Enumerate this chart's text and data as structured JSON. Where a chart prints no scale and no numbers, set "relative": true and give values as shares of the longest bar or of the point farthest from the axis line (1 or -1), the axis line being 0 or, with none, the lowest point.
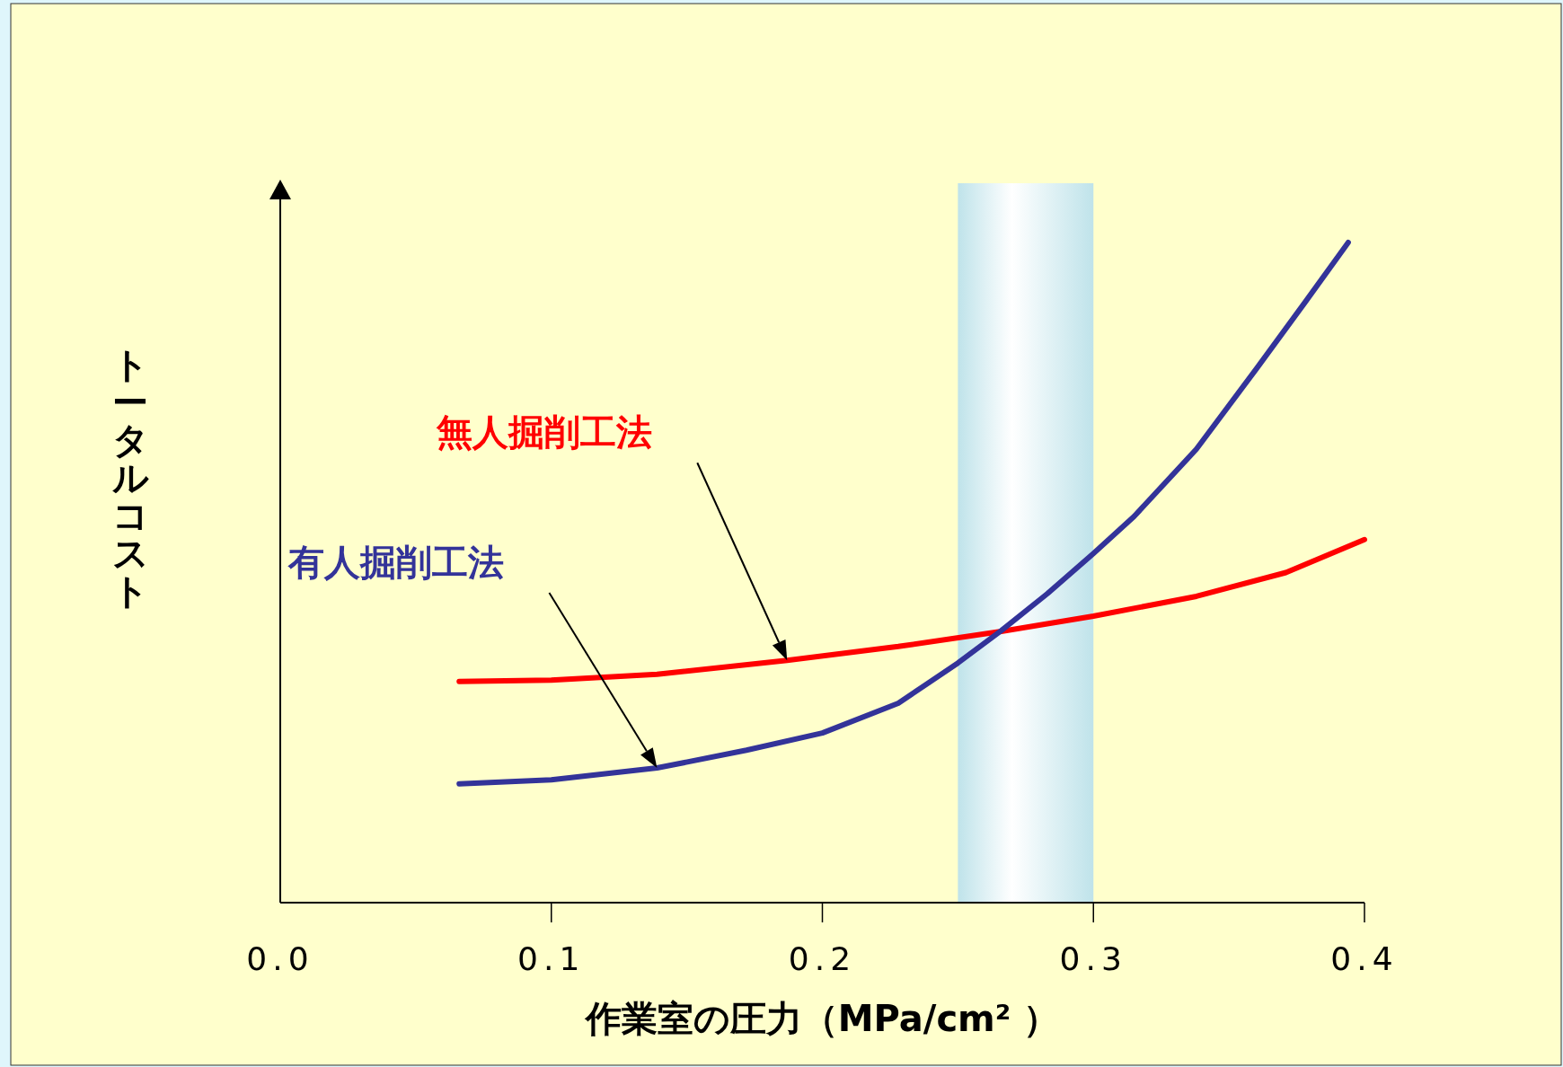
{
  "chart_data": {
    "type": "line",
    "relative": true,
    "xlabel": "作業室の圧力（MPa/cm² ）",
    "ylabel": "トータルコスト",
    "xlim": [
      0,
      0.4
    ],
    "xticks": [
      {
        "value": 0,
        "label": "0.0"
      },
      0.1,
      0.2,
      0.3,
      0.4
    ],
    "legend": false,
    "grid": false,
    "marker": "none",
    "line_style": "solid",
    "bands": [
      {
        "axis": "x",
        "from": 0.25,
        "to": 0.3,
        "color": "#bfe3ea"
      }
    ],
    "series": [
      {
        "name": "無人掘削工法",
        "color": "#ff0000",
        "x": [
          0.066,
          0.1,
          0.139,
          0.187,
          0.228,
          0.266,
          0.3,
          0.338,
          0.371,
          0.4
        ],
        "values": [
          0.335,
          0.337,
          0.346,
          0.367,
          0.388,
          0.411,
          0.434,
          0.464,
          0.5,
          0.55
        ]
      },
      {
        "name": "有人掘削工法",
        "color": "#333399",
        "x": [
          0.066,
          0.1,
          0.139,
          0.172,
          0.2,
          0.228,
          0.25,
          0.266,
          0.283,
          0.3,
          0.315,
          0.338,
          0.36,
          0.378,
          0.394
        ],
        "values": [
          0.18,
          0.186,
          0.204,
          0.231,
          0.257,
          0.302,
          0.363,
          0.412,
          0.468,
          0.529,
          0.585,
          0.687,
          0.808,
          0.909,
          1.0
        ]
      }
    ]
  }
}
